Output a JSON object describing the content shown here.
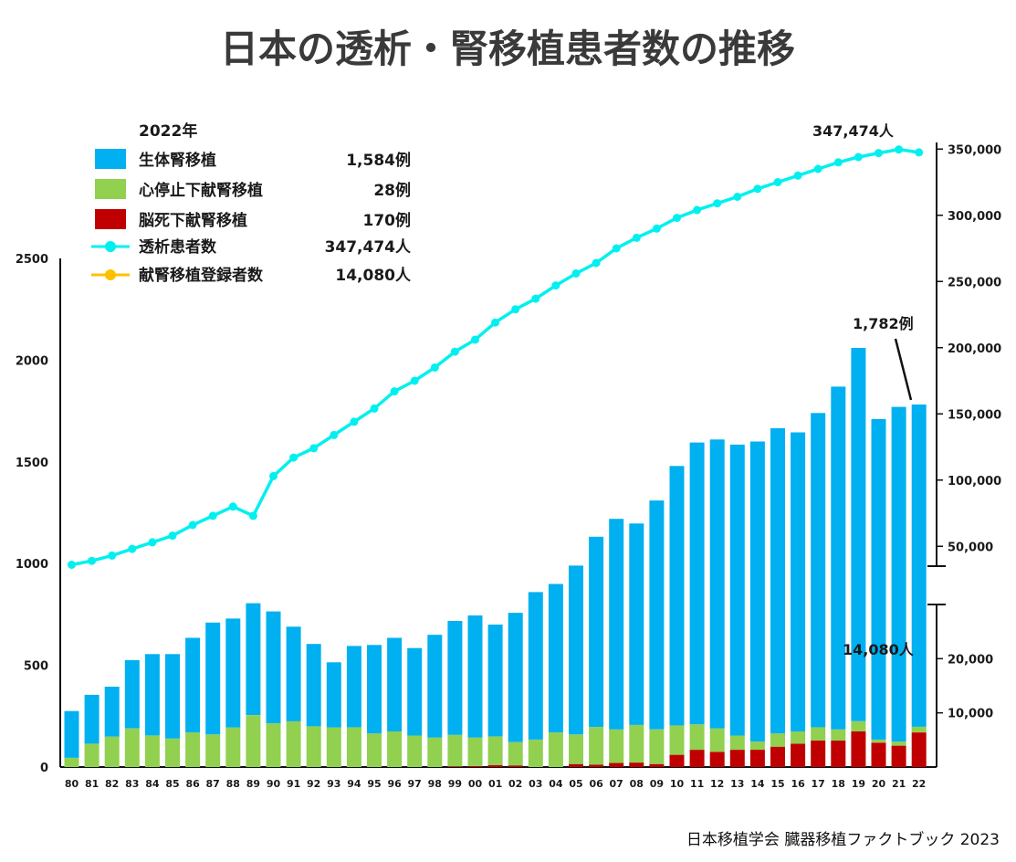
{
  "chart_data": {
    "type": "bar",
    "title": "日本の透析・腎移植患者数の推移",
    "source": "日本移植学会 臓器移植ファクトブック 2023",
    "categories": [
      "80",
      "81",
      "82",
      "83",
      "84",
      "85",
      "86",
      "87",
      "88",
      "89",
      "90",
      "91",
      "92",
      "93",
      "94",
      "95",
      "96",
      "97",
      "98",
      "99",
      "00",
      "01",
      "02",
      "03",
      "04",
      "05",
      "06",
      "07",
      "08",
      "09",
      "10",
      "11",
      "12",
      "13",
      "14",
      "15",
      "16",
      "17",
      "18",
      "19",
      "20",
      "21",
      "22"
    ],
    "series": [
      {
        "name": "脳死下献腎移植",
        "color": "#c00000",
        "values": [
          0,
          0,
          0,
          0,
          0,
          0,
          0,
          0,
          0,
          0,
          0,
          0,
          0,
          0,
          0,
          0,
          0,
          0,
          0,
          3,
          5,
          10,
          8,
          0,
          0,
          15,
          12,
          20,
          22,
          15,
          60,
          85,
          75,
          85,
          85,
          100,
          115,
          130,
          130,
          175,
          120,
          105,
          170
        ]
      },
      {
        "name": "心停止下献腎移植",
        "color": "#92d050",
        "values": [
          45,
          115,
          150,
          190,
          155,
          140,
          170,
          160,
          195,
          255,
          215,
          225,
          200,
          195,
          195,
          165,
          175,
          155,
          145,
          155,
          140,
          140,
          115,
          135,
          170,
          145,
          185,
          165,
          185,
          170,
          145,
          125,
          115,
          70,
          40,
          65,
          60,
          65,
          55,
          50,
          15,
          20,
          28
        ]
      },
      {
        "name": "生体腎移植",
        "color": "#00b0f0",
        "values": [
          230,
          240,
          245,
          335,
          400,
          415,
          465,
          550,
          535,
          550,
          550,
          465,
          405,
          320,
          400,
          435,
          460,
          430,
          505,
          560,
          600,
          550,
          635,
          725,
          730,
          830,
          935,
          1035,
          990,
          1125,
          1275,
          1385,
          1420,
          1430,
          1475,
          1500,
          1470,
          1545,
          1685,
          1835,
          1575,
          1645,
          1584
        ]
      }
    ],
    "line_series": [
      {
        "name": "透析患者数",
        "color": "#00f0f0",
        "values": [
          36000,
          39000,
          43000,
          48000,
          53000,
          58000,
          66000,
          73000,
          80000,
          73000,
          103000,
          117000,
          124000,
          134000,
          144000,
          154000,
          167000,
          175000,
          185000,
          197000,
          206000,
          219000,
          229000,
          237000,
          247000,
          256000,
          264000,
          275000,
          283000,
          290000,
          298000,
          304000,
          309000,
          314000,
          320000,
          325000,
          330000,
          335000,
          340000,
          344000,
          347000,
          349700,
          347474
        ]
      },
      {
        "name": "献腎移植登録者数",
        "color": "#ffc000",
        "values": []
      }
    ],
    "left_axis": {
      "ylim": [
        0,
        2500
      ],
      "ticks": [
        "0",
        "500",
        "1000",
        "1500",
        "2000",
        "2500"
      ]
    },
    "right_axis_upper": {
      "ylim": [
        35000,
        355000
      ],
      "ticks": [
        "50,000",
        "100,000",
        "150,000",
        "200,000",
        "250,000",
        "300,000",
        "350,000"
      ]
    },
    "right_axis_lower": {
      "ylim": [
        0,
        30000
      ],
      "ticks": [
        "10,000",
        "20,000"
      ]
    },
    "legend": {
      "year": "2022年",
      "items": [
        {
          "label": "生体腎移植",
          "value": "1,584例",
          "marker": "square",
          "color": "#00b0f0"
        },
        {
          "label": "心停止下献腎移植",
          "value": "28例",
          "marker": "square",
          "color": "#92d050"
        },
        {
          "label": "脳死下献腎移植",
          "value": "170例",
          "marker": "square",
          "color": "#c00000"
        },
        {
          "label": "透析患者数",
          "value": "347,474人",
          "marker": "line",
          "color": "#00f0f0"
        },
        {
          "label": "献腎移植登録者数",
          "value": "14,080人",
          "marker": "line",
          "color": "#ffc000"
        }
      ]
    },
    "annotations": {
      "dialysis_last": "347,474人",
      "total_last": "1,782例",
      "registrants": "14,080人"
    }
  }
}
